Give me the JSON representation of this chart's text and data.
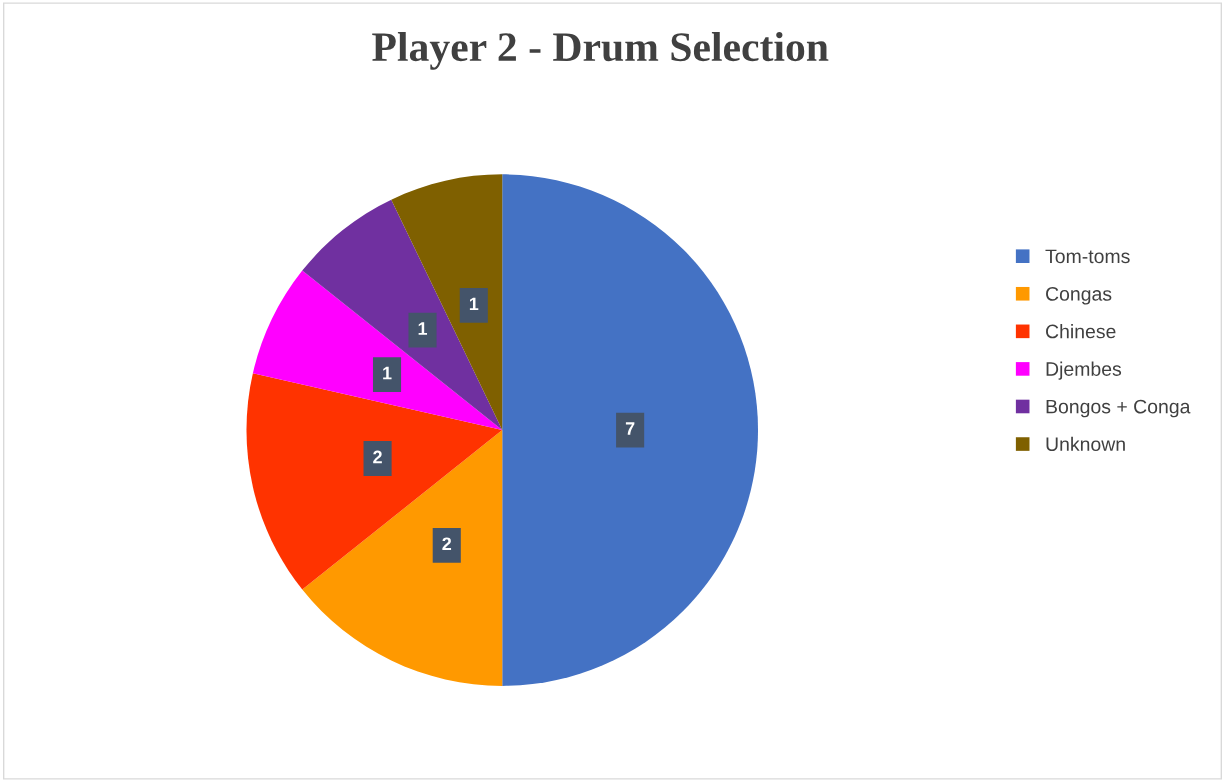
{
  "chart_data": {
    "type": "pie",
    "title": "Player 2 - Drum Selection",
    "categories": [
      "Tom-toms",
      "Congas",
      "Chinese",
      "Djembes",
      "Bongos + Conga",
      "Unknown"
    ],
    "values": [
      7,
      2,
      2,
      1,
      1,
      1
    ],
    "colors": [
      "#4472c4",
      "#ff9900",
      "#ff3300",
      "#ff00ff",
      "#7030a0",
      "#7f6000"
    ],
    "data_labels": true,
    "legend": "right"
  }
}
